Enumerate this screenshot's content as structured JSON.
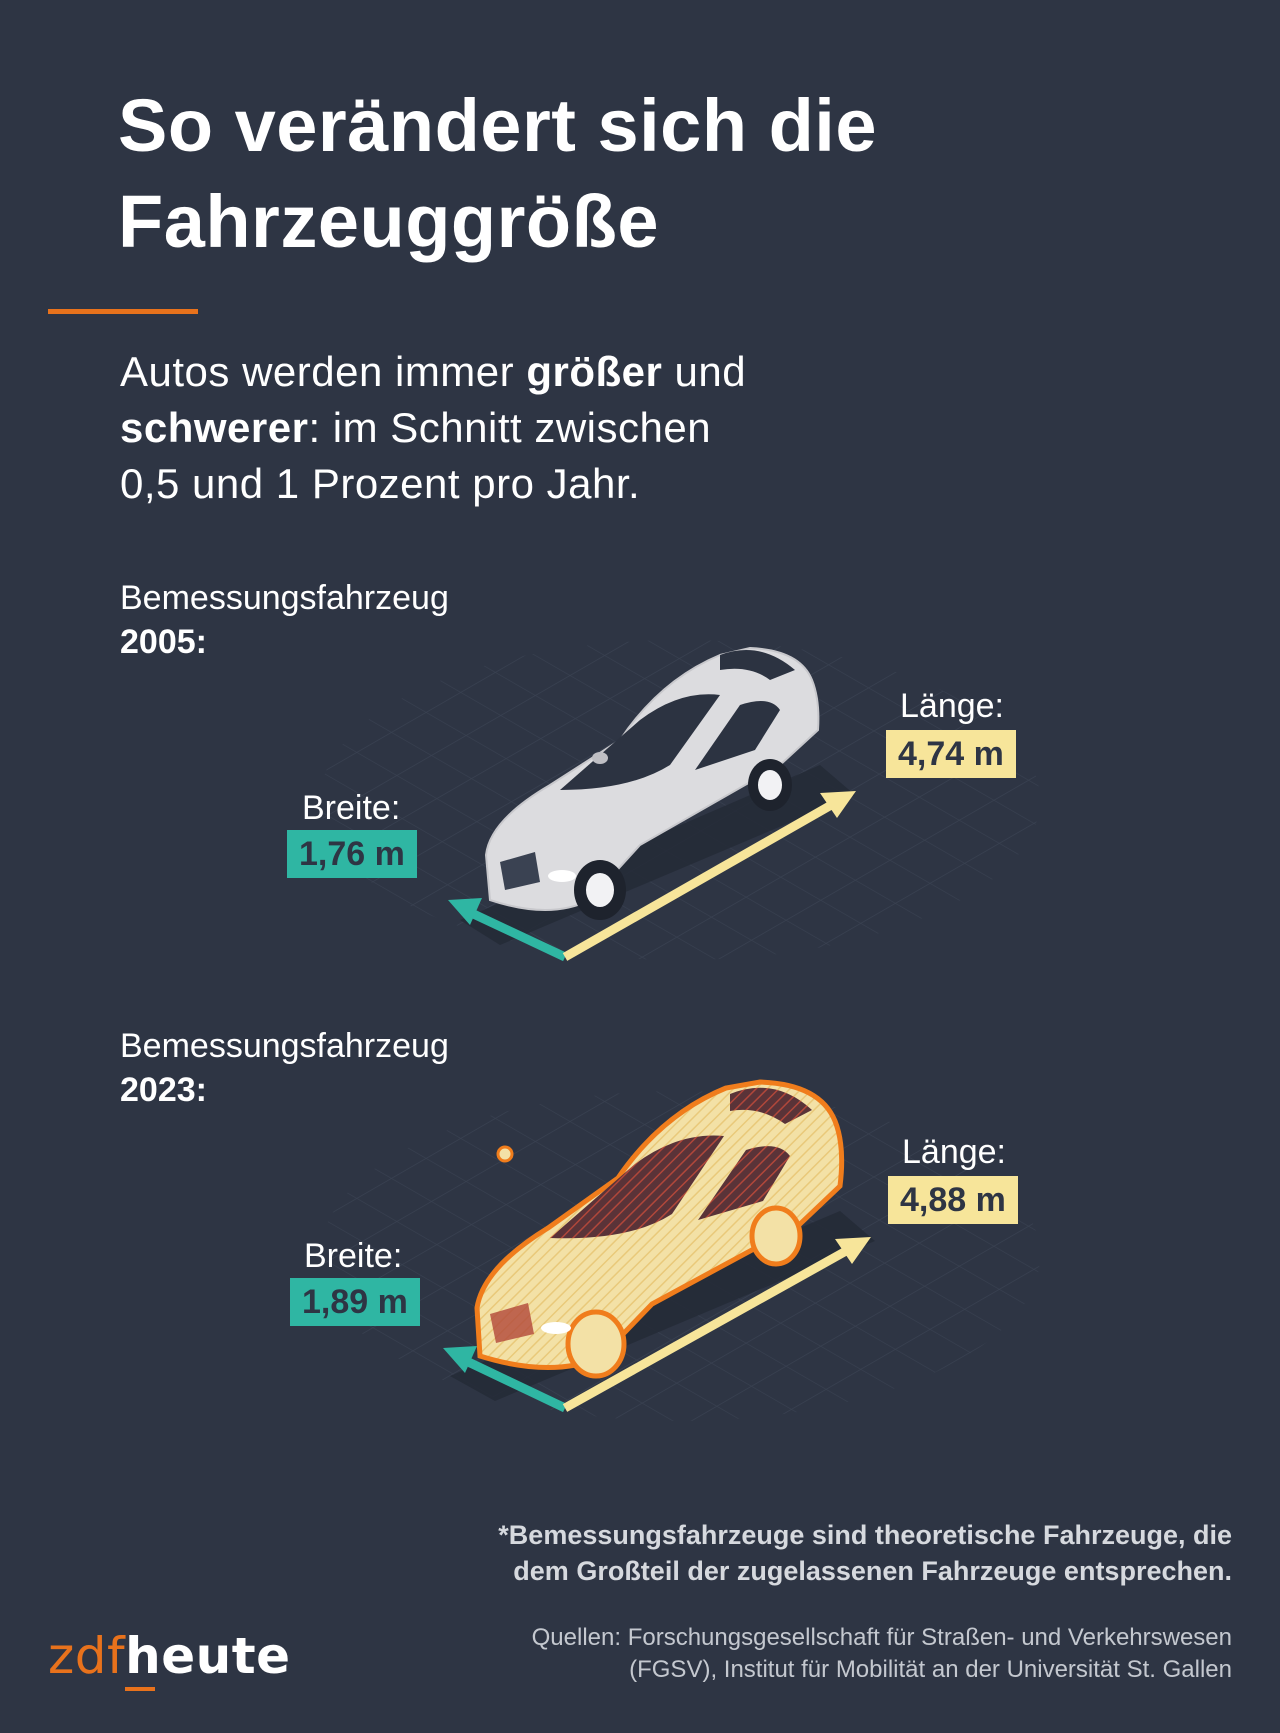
{
  "title": {
    "line1": "So verändert sich die",
    "line2": "Fahrzeuggröße"
  },
  "intro": {
    "p1": "Autos werden immer ",
    "b1": "größer",
    "p2": " und ",
    "b2": "schwerer",
    "p3": ": im Schnitt zwischen",
    "p4": "0,5 und 1 Prozent pro Jahr."
  },
  "vehicles": [
    {
      "label": "Bemessungsfahrzeug",
      "year": "2005:",
      "width_label": "Breite:",
      "width_value": "1,76 m",
      "length_label": "Länge:",
      "length_value": "4,74 m"
    },
    {
      "label": "Bemessungsfahrzeug",
      "year": "2023:",
      "width_label": "Breite:",
      "width_value": "1,89 m",
      "length_label": "Länge:",
      "length_value": "4,88 m"
    }
  ],
  "footnote": {
    "line1": "*Bemessungsfahrzeuge sind theoretische Fahrzeuge, die",
    "line2": "dem Großteil der zugelassenen Fahrzeuge entsprechen."
  },
  "source": {
    "line1": "Quellen: Forschungsgesellschaft für Straßen- und Verkehrswesen",
    "line2": "(FGSV), Institut für Mobilität an der Universität St. Gallen"
  },
  "logo": {
    "part1": "zdf",
    "part2": "heute"
  },
  "colors": {
    "background": "#2e3544",
    "accent_orange": "#e8721c",
    "width_teal": "#2fb6a3",
    "length_yellow": "#f7e59a"
  }
}
